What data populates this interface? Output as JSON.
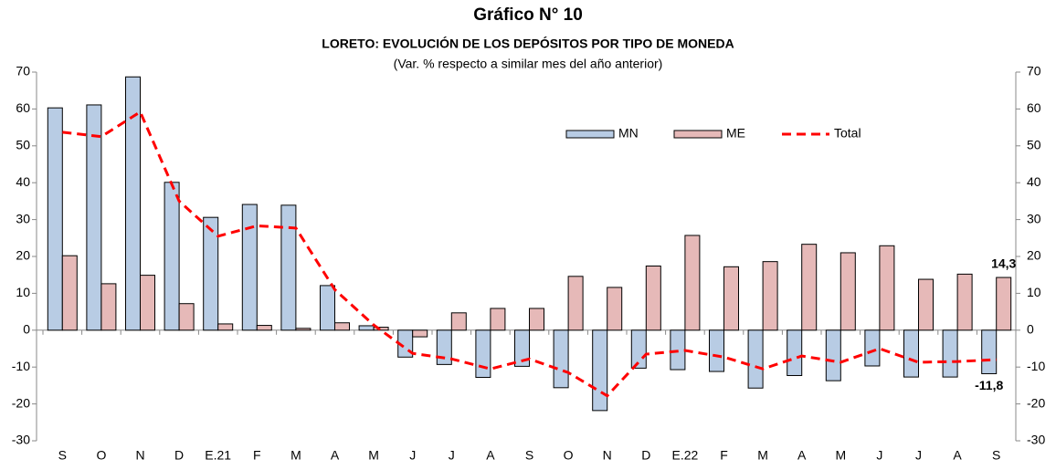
{
  "chart_data": {
    "type": "bar_line",
    "title": "Gráfico N° 10",
    "subtitle": "LORETO: EVOLUCIÓN DE LOS DEPÓSITOS POR TIPO DE MONEDA",
    "note": "(Var. % respecto a similar mes del año anterior)",
    "categories": [
      "S",
      "O",
      "N",
      "D",
      "E.21",
      "F",
      "M",
      "A",
      "M",
      "J",
      "J",
      "A",
      "S",
      "O",
      "N",
      "D",
      "E.22",
      "F",
      "M",
      "A",
      "M",
      "J",
      "J",
      "A",
      "S"
    ],
    "series": [
      {
        "name": "MN",
        "kind": "bar",
        "color": "#b8cce4",
        "values": [
          60.3,
          61.1,
          68.7,
          40.1,
          30.6,
          34.1,
          33.9,
          12.1,
          1.2,
          -7.3,
          -9.3,
          -12.8,
          -9.8,
          -15.6,
          -21.8,
          -10.3,
          -10.7,
          -11.2,
          -15.7,
          -12.3,
          -13.7,
          -9.7,
          -12.7,
          -12.7,
          -11.8
        ],
        "value_labels": [
          null,
          null,
          null,
          null,
          null,
          null,
          null,
          null,
          null,
          null,
          null,
          null,
          null,
          null,
          null,
          null,
          null,
          null,
          null,
          null,
          null,
          null,
          null,
          null,
          "-11,8"
        ]
      },
      {
        "name": "ME",
        "kind": "bar",
        "color": "#e6b9b8",
        "values": [
          20.2,
          12.6,
          14.9,
          7.2,
          1.7,
          1.3,
          0.5,
          2.0,
          0.8,
          -1.8,
          4.7,
          5.9,
          5.9,
          14.6,
          11.6,
          17.4,
          25.7,
          17.2,
          18.6,
          23.3,
          21.0,
          22.9,
          13.8,
          15.2,
          14.3
        ],
        "value_labels": [
          null,
          null,
          null,
          null,
          null,
          null,
          null,
          null,
          null,
          null,
          null,
          null,
          null,
          null,
          null,
          null,
          null,
          null,
          null,
          null,
          null,
          null,
          null,
          null,
          "14,3"
        ]
      },
      {
        "name": "Total",
        "kind": "line",
        "color": "#ff0000",
        "values": [
          53.7,
          52.5,
          59.2,
          35.0,
          25.5,
          28.3,
          27.7,
          11.0,
          1.4,
          -6.3,
          -7.8,
          -10.5,
          -7.8,
          -11.5,
          -17.8,
          -6.5,
          -5.5,
          -7.3,
          -10.5,
          -7.0,
          -8.7,
          -5.0,
          -8.7,
          -8.5,
          -8.0
        ]
      }
    ],
    "ylim": [
      -30,
      70
    ],
    "yticks": [
      -30,
      -20,
      -10,
      0,
      10,
      20,
      30,
      40,
      50,
      60,
      70
    ],
    "y2lim": [
      -30,
      70
    ],
    "y2ticks": [
      -30,
      -20,
      -10,
      0,
      10,
      20,
      30,
      40,
      50,
      60,
      70
    ],
    "grid": false
  }
}
